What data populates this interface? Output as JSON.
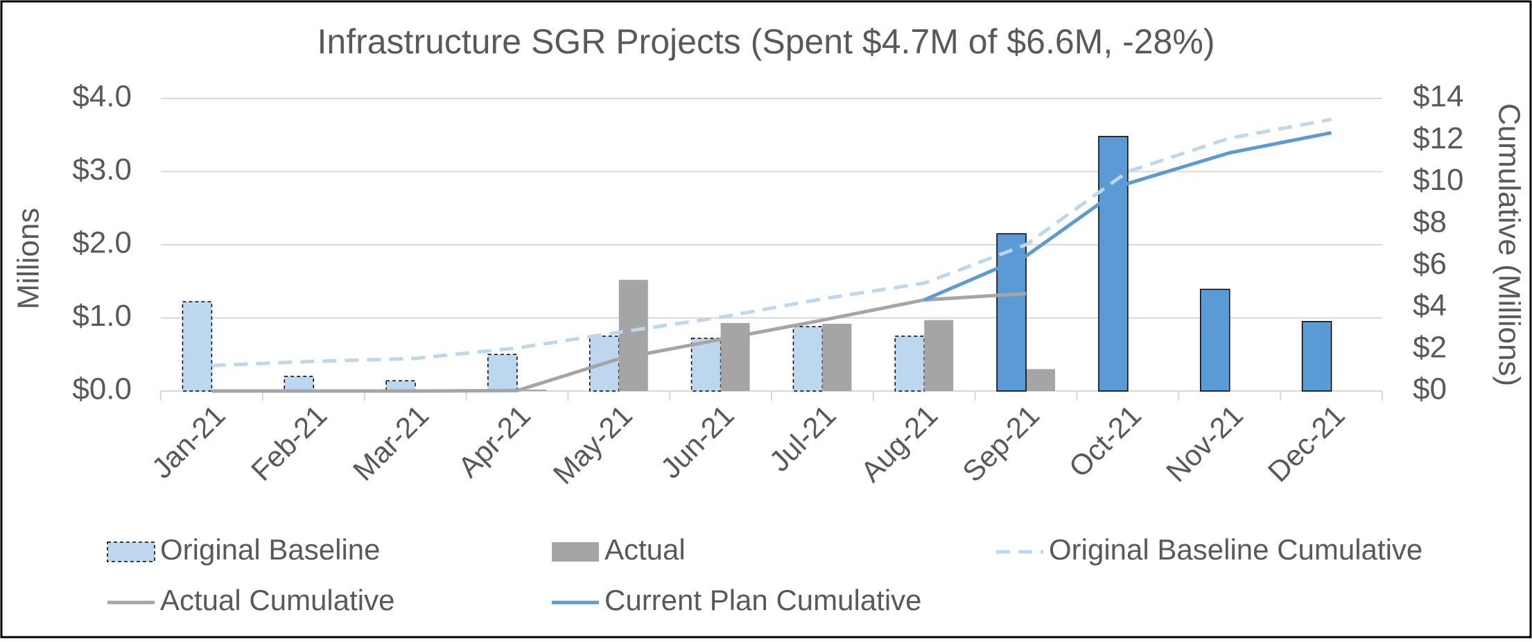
{
  "chart_data": {
    "type": "bar-line",
    "title": "Infrastructure SGR Projects (Spent $4.7M of $6.6M, -28%)",
    "y_label": "Millions",
    "y2_label": "Cumulative (Millions)",
    "categories": [
      "Jan-21",
      "Feb-21",
      "Mar-21",
      "Apr-21",
      "May-21",
      "Jun-21",
      "Jul-21",
      "Aug-21",
      "Sep-21",
      "Oct-21",
      "Nov-21",
      "Dec-21"
    ],
    "ylim": [
      0,
      4
    ],
    "yticks": [
      {
        "value": 0,
        "label": "$0.0"
      },
      {
        "value": 1,
        "label": "$1.0"
      },
      {
        "value": 2,
        "label": "$2.0"
      },
      {
        "value": 3,
        "label": "$3.0"
      },
      {
        "value": 4,
        "label": "$4.0"
      }
    ],
    "y2lim": [
      0,
      14
    ],
    "y2ticks": [
      {
        "value": 0,
        "label": "$0"
      },
      {
        "value": 2,
        "label": "$2"
      },
      {
        "value": 4,
        "label": "$4"
      },
      {
        "value": 6,
        "label": "$6"
      },
      {
        "value": 8,
        "label": "$8"
      },
      {
        "value": 10,
        "label": "$10"
      },
      {
        "value": 12,
        "label": "$12"
      },
      {
        "value": 14,
        "label": "$14"
      }
    ],
    "grid": true,
    "legend": "bottom",
    "series": [
      {
        "name": "Original Baseline",
        "kind": "bar",
        "color": "#bdd7ee",
        "edgecolor": "#000000",
        "edgestyle": "dashed",
        "values": [
          1.22,
          0.2,
          0.14,
          0.5,
          0.75,
          0.72,
          0.88,
          0.75,
          null,
          null,
          null,
          null
        ]
      },
      {
        "name": "Actual",
        "kind": "bar",
        "color": "#a5a5a5",
        "values": [
          0,
          0,
          0,
          0.02,
          1.52,
          0.93,
          0.92,
          0.97,
          0.3,
          null,
          null,
          null
        ]
      },
      {
        "kind": "bar",
        "color": "#5b9bd5",
        "edgecolor": "#000000",
        "edgestyle": "solid",
        "values": [
          null,
          null,
          null,
          null,
          null,
          null,
          null,
          null,
          2.15,
          3.48,
          1.39,
          0.95
        ]
      },
      {
        "name": "Original Baseline Cumulative",
        "kind": "line",
        "axis": "y2",
        "color": "#bdd7ee",
        "dashed": true,
        "values": [
          1.22,
          1.42,
          1.56,
          2.06,
          2.81,
          3.53,
          4.41,
          5.16,
          7.0,
          10.5,
          12.1,
          13.0
        ]
      },
      {
        "name": "Actual Cumulative",
        "kind": "line",
        "axis": "y2",
        "color": "#a5a5a5",
        "values": [
          0,
          0,
          0,
          0.02,
          1.54,
          2.47,
          3.39,
          4.36,
          4.66,
          null,
          null,
          null
        ]
      },
      {
        "name": "Current Plan Cumulative",
        "kind": "line",
        "axis": "y2",
        "color": "#5b9bd5",
        "values": [
          null,
          null,
          null,
          null,
          null,
          null,
          null,
          4.36,
          6.46,
          9.93,
          11.4,
          12.36
        ]
      }
    ]
  }
}
